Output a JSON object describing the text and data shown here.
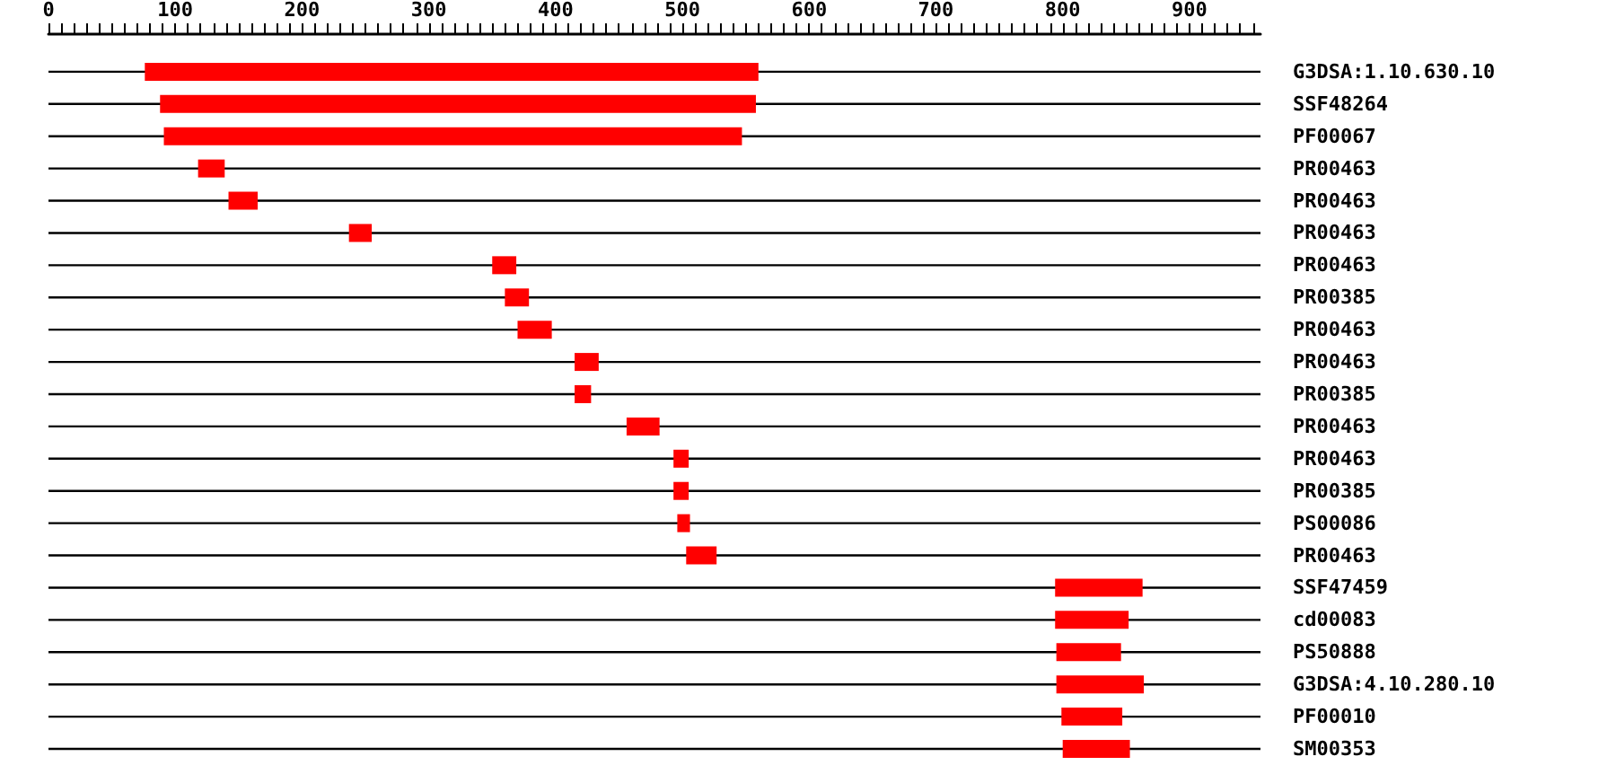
{
  "chart_data": {
    "type": "bar",
    "orientation": "horizontal",
    "grid": "y",
    "categories": [
      "G3DSA:1.10.630.10",
      "SSF48264",
      "PF00067",
      "PR00463",
      "PR00463",
      "PR00463",
      "PR00463",
      "PR00385",
      "PR00463",
      "PR00463",
      "PR00385",
      "PR00463",
      "PR00463",
      "PR00385",
      "PS00086",
      "PR00463",
      "SSF47459",
      "cd00083",
      "PS50888",
      "G3DSA:4.10.280.10",
      "PF00010",
      "SM00353"
    ],
    "base": [
      76,
      88,
      91,
      118,
      142,
      237,
      350,
      360,
      370,
      415,
      415,
      456,
      493,
      493,
      496,
      503,
      794,
      794,
      795,
      795,
      799,
      800
    ],
    "values": [
      484,
      470,
      456,
      21,
      23,
      18,
      19,
      19,
      27,
      19,
      13,
      26,
      12,
      12,
      10,
      24,
      69,
      58,
      51,
      69,
      48,
      53
    ],
    "color": "#ff0000",
    "xlim": [
      0,
      956
    ],
    "xticks": [
      0,
      {
        "value": 10,
        "label": null
      },
      {
        "value": 20,
        "label": null
      },
      {
        "value": 30,
        "label": null
      },
      {
        "value": 40,
        "label": null
      },
      {
        "value": 50,
        "label": null
      },
      {
        "value": 60,
        "label": null
      },
      {
        "value": 70,
        "label": null
      },
      {
        "value": 80,
        "label": null
      },
      {
        "value": 90,
        "label": null
      },
      100,
      {
        "value": 110,
        "label": null
      },
      {
        "value": 120,
        "label": null
      },
      {
        "value": 130,
        "label": null
      },
      {
        "value": 140,
        "label": null
      },
      {
        "value": 150,
        "label": null
      },
      {
        "value": 160,
        "label": null
      },
      {
        "value": 170,
        "label": null
      },
      {
        "value": 180,
        "label": null
      },
      {
        "value": 190,
        "label": null
      },
      200,
      {
        "value": 210,
        "label": null
      },
      {
        "value": 220,
        "label": null
      },
      {
        "value": 230,
        "label": null
      },
      {
        "value": 240,
        "label": null
      },
      {
        "value": 250,
        "label": null
      },
      {
        "value": 260,
        "label": null
      },
      {
        "value": 270,
        "label": null
      },
      {
        "value": 280,
        "label": null
      },
      {
        "value": 290,
        "label": null
      },
      300,
      {
        "value": 310,
        "label": null
      },
      {
        "value": 320,
        "label": null
      },
      {
        "value": 330,
        "label": null
      },
      {
        "value": 340,
        "label": null
      },
      {
        "value": 350,
        "label": null
      },
      {
        "value": 360,
        "label": null
      },
      {
        "value": 370,
        "label": null
      },
      {
        "value": 380,
        "label": null
      },
      {
        "value": 390,
        "label": null
      },
      400,
      {
        "value": 410,
        "label": null
      },
      {
        "value": 420,
        "label": null
      },
      {
        "value": 430,
        "label": null
      },
      {
        "value": 440,
        "label": null
      },
      {
        "value": 450,
        "label": null
      },
      {
        "value": 460,
        "label": null
      },
      {
        "value": 470,
        "label": null
      },
      {
        "value": 480,
        "label": null
      },
      {
        "value": 490,
        "label": null
      },
      500,
      {
        "value": 510,
        "label": null
      },
      {
        "value": 520,
        "label": null
      },
      {
        "value": 530,
        "label": null
      },
      {
        "value": 540,
        "label": null
      },
      {
        "value": 550,
        "label": null
      },
      {
        "value": 560,
        "label": null
      },
      {
        "value": 570,
        "label": null
      },
      {
        "value": 580,
        "label": null
      },
      {
        "value": 590,
        "label": null
      },
      600,
      {
        "value": 610,
        "label": null
      },
      {
        "value": 620,
        "label": null
      },
      {
        "value": 630,
        "label": null
      },
      {
        "value": 640,
        "label": null
      },
      {
        "value": 650,
        "label": null
      },
      {
        "value": 660,
        "label": null
      },
      {
        "value": 670,
        "label": null
      },
      {
        "value": 680,
        "label": null
      },
      {
        "value": 690,
        "label": null
      },
      700,
      {
        "value": 710,
        "label": null
      },
      {
        "value": 720,
        "label": null
      },
      {
        "value": 730,
        "label": null
      },
      {
        "value": 740,
        "label": null
      },
      {
        "value": 750,
        "label": null
      },
      {
        "value": 760,
        "label": null
      },
      {
        "value": 770,
        "label": null
      },
      {
        "value": 780,
        "label": null
      },
      {
        "value": 790,
        "label": null
      },
      800,
      {
        "value": 810,
        "label": null
      },
      {
        "value": 820,
        "label": null
      },
      {
        "value": 830,
        "label": null
      },
      {
        "value": 840,
        "label": null
      },
      {
        "value": 850,
        "label": null
      },
      {
        "value": 860,
        "label": null
      },
      {
        "value": 870,
        "label": null
      },
      {
        "value": 880,
        "label": null
      },
      {
        "value": 890,
        "label": null
      },
      900,
      {
        "value": 910,
        "label": null
      },
      {
        "value": 920,
        "label": null
      },
      {
        "value": 930,
        "label": null
      },
      {
        "value": 940,
        "label": null
      },
      {
        "value": 950,
        "label": null
      }
    ]
  }
}
